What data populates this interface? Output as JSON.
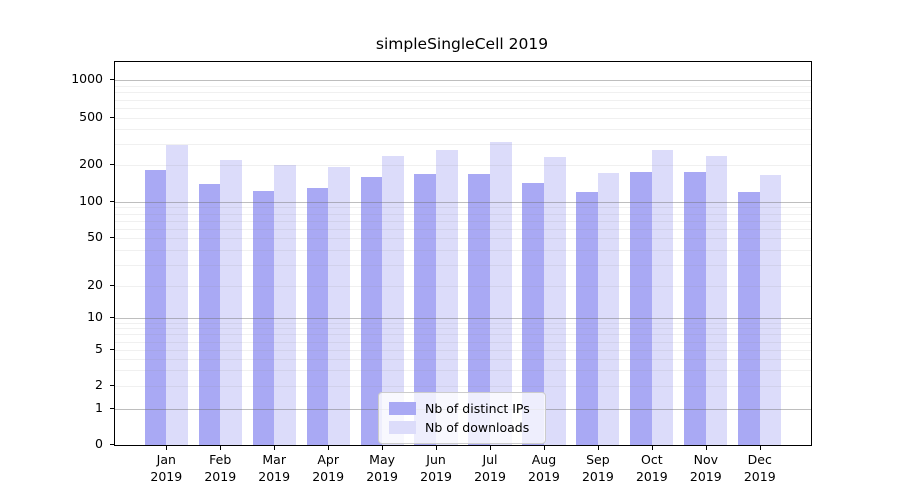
{
  "title": "simpleSingleCell 2019",
  "legend": {
    "items": [
      {
        "label": "Nb of distinct IPs",
        "color": "#a9a9f4"
      },
      {
        "label": "Nb of downloads",
        "color": "#dcdcfa"
      }
    ]
  },
  "chart_data": {
    "type": "bar",
    "title": "simpleSingleCell 2019",
    "categories": [
      "Jan 2019",
      "Feb 2019",
      "Mar 2019",
      "Apr 2019",
      "May 2019",
      "Jun 2019",
      "Jul 2019",
      "Aug 2019",
      "Sep 2019",
      "Oct 2019",
      "Nov 2019",
      "Dec 2019"
    ],
    "series": [
      {
        "name": "Nb of distinct IPs",
        "color": "#a9a9f4",
        "values": [
          183,
          141,
          122,
          131,
          160,
          169,
          170,
          142,
          120,
          177,
          175,
          120
        ]
      },
      {
        "name": "Nb of downloads",
        "color": "#dcdcfa",
        "values": [
          297,
          220,
          200,
          191,
          240,
          270,
          315,
          235,
          172,
          270,
          238,
          165
        ]
      }
    ],
    "xlabel": "",
    "ylabel": "",
    "y_ticks": [
      0,
      1,
      2,
      5,
      10,
      20,
      50,
      100,
      200,
      500,
      1000
    ],
    "y_scale": "log-like (symlog/asinh), includes 0",
    "ylim": [
      0,
      1400
    ],
    "grid": "major gray lines at 1,10,100,1000; faint minor lines at 2-9 per decade",
    "legend_position": "lower center",
    "colors": {
      "major_grid": "#aaaaaa",
      "minor_grid": "#e9e9e9",
      "spine": "#000000",
      "background": "#ffffff"
    }
  }
}
